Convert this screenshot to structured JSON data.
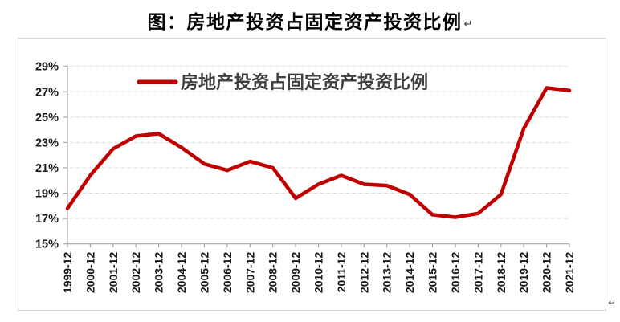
{
  "title": {
    "text": "图：房地产投资占固定资产投资比例",
    "paragraph_mark": "↵"
  },
  "footer": {
    "paragraph_mark": "↵"
  },
  "chart_data": {
    "type": "line",
    "title": "图：房地产投资占固定资产投资比例",
    "legend_label": "房地产投资占固定资产投资比例",
    "legend_position": "top-center-inside",
    "grid": "horizontal-dash-dot",
    "x_axis": {
      "label": "",
      "tick_rotation": -90
    },
    "y_axis": {
      "label": "",
      "range": [
        15,
        29
      ],
      "tick_step": 2,
      "tick_format": "percent",
      "tick_labels": [
        "15%",
        "17%",
        "19%",
        "21%",
        "23%",
        "25%",
        "27%",
        "29%"
      ]
    },
    "categories": [
      "1999-12",
      "2000-12",
      "2001-12",
      "2002-12",
      "2003-12",
      "2004-12",
      "2005-12",
      "2006-12",
      "2007-12",
      "2008-12",
      "2009-12",
      "2010-12",
      "2011-12",
      "2012-12",
      "2013-12",
      "2014-12",
      "2015-12",
      "2016-12",
      "2017-12",
      "2018-12",
      "2019-12",
      "2020-12",
      "2021-12"
    ],
    "series": [
      {
        "name": "房地产投资占固定资产投资比例",
        "color": "#C00000",
        "values": [
          17.8,
          20.4,
          22.5,
          23.5,
          23.7,
          22.6,
          21.3,
          20.8,
          21.5,
          21.0,
          18.6,
          19.7,
          20.4,
          19.7,
          19.6,
          18.9,
          17.3,
          17.1,
          17.4,
          18.9,
          24.1,
          27.3,
          27.1
        ]
      }
    ]
  },
  "style": {
    "line_color": "#C00000",
    "grid_color": "#D8D8D8",
    "axis_color": "#A6A6A6",
    "axis_text_color": "#1A1A1A",
    "legend_text_color": "#404040",
    "frame_color": "#D9D9D9",
    "background": "#FFFFFF"
  }
}
